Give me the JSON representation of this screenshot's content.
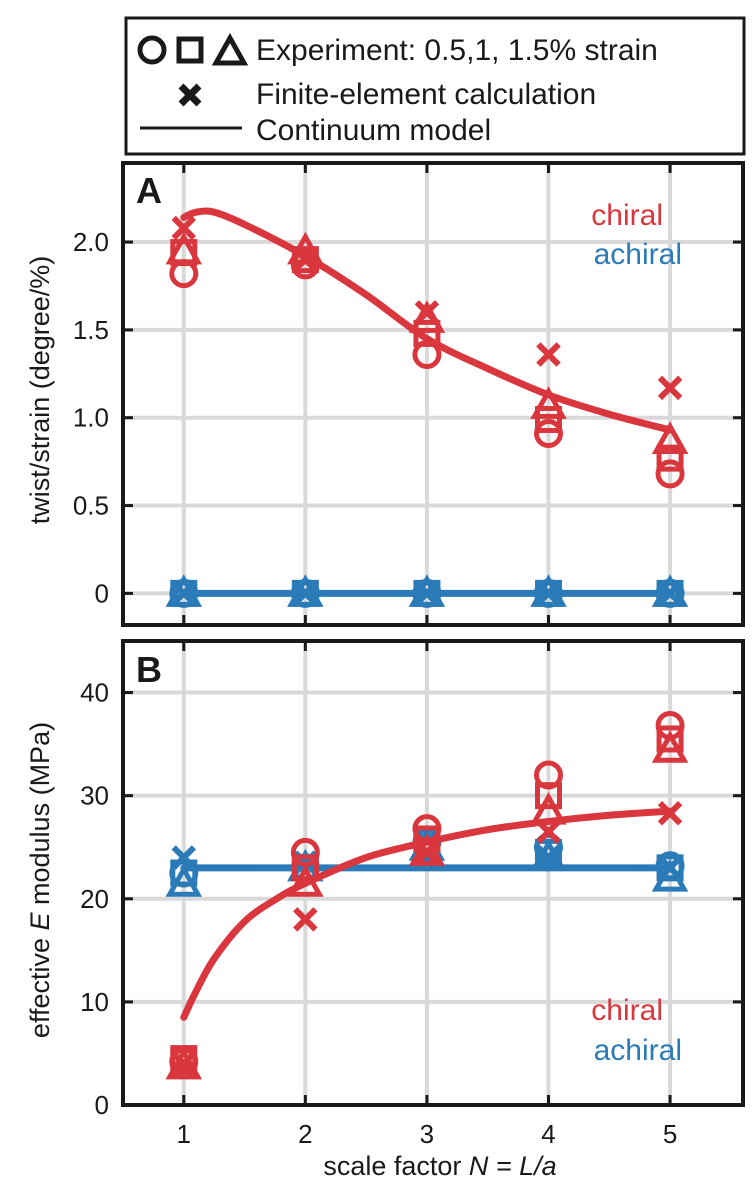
{
  "colors": {
    "chiral": "#d9363e",
    "achiral": "#2b7bb9",
    "grid": "#d9d9d9",
    "frame": "#1a1a1a"
  },
  "legend": {
    "experiment": "Experiment: 0.5,1, 1.5% strain",
    "fe": "Finite-element calculation",
    "model": "Continuum model"
  },
  "xlabel": {
    "pre": "scale factor ",
    "var": "N = L/a"
  },
  "chart_data": [
    {
      "type": "line",
      "panel": "A",
      "ylabel": "twist/strain (degree/%)",
      "xlim": [
        0.5,
        5.6
      ],
      "ylim": [
        -0.18,
        2.45
      ],
      "x_ticks": [
        1,
        2,
        3,
        4,
        5
      ],
      "y_ticks": [
        0,
        0.5,
        1.0,
        1.5,
        2.0
      ],
      "y_tick_labels": [
        "0",
        "0.5",
        "1.0",
        "1.5",
        "2.0"
      ],
      "grid": true,
      "legend_labels": {
        "chiral": "chiral",
        "achiral": "achiral"
      },
      "series": [
        {
          "group": "chiral",
          "model": {
            "x": [
              1.0,
              1.1,
              1.25,
              1.5,
              2.0,
              2.5,
              3.0,
              3.5,
              4.0,
              4.5,
              5.0
            ],
            "y": [
              2.14,
              2.17,
              2.17,
              2.1,
              1.92,
              1.7,
              1.45,
              1.28,
              1.13,
              1.02,
              0.93
            ]
          },
          "fe": {
            "x": [
              1,
              2,
              3,
              4,
              5
            ],
            "y": [
              2.08,
              1.9,
              1.6,
              1.36,
              1.17
            ]
          },
          "exp_circle": {
            "x": [
              1,
              2,
              3,
              4,
              5
            ],
            "y": [
              1.82,
              1.87,
              1.36,
              0.91,
              0.68
            ]
          },
          "exp_square": {
            "x": [
              1,
              2,
              3,
              4,
              5
            ],
            "y": [
              1.94,
              1.9,
              1.48,
              0.99,
              0.77
            ]
          },
          "exp_triangle": {
            "x": [
              1,
              2,
              3,
              4,
              5
            ],
            "y": [
              1.95,
              1.95,
              1.56,
              1.07,
              0.87
            ]
          }
        },
        {
          "group": "achiral",
          "model": {
            "x": [
              1,
              5
            ],
            "y": [
              0,
              0
            ]
          },
          "fe": {
            "x": [
              1,
              2,
              3,
              4,
              5
            ],
            "y": [
              0,
              0,
              0,
              0,
              0
            ]
          },
          "exp_circle": {
            "x": [
              1,
              2,
              3,
              4,
              5
            ],
            "y": [
              0,
              0,
              0,
              0,
              0
            ]
          },
          "exp_square": {
            "x": [
              1,
              2,
              3,
              4,
              5
            ],
            "y": [
              0,
              0,
              0,
              0,
              0
            ]
          },
          "exp_triangle": {
            "x": [
              1,
              2,
              3,
              4,
              5
            ],
            "y": [
              0,
              0,
              0,
              0,
              0
            ]
          }
        }
      ]
    },
    {
      "type": "line",
      "panel": "B",
      "ylabel_pre": "effective ",
      "ylabel_var": "E",
      "ylabel_post": " modulus (MPa)",
      "xlim": [
        0.5,
        5.6
      ],
      "ylim": [
        0,
        45
      ],
      "x_ticks": [
        1,
        2,
        3,
        4,
        5
      ],
      "x_tick_labels": [
        "1",
        "2",
        "3",
        "4",
        "5"
      ],
      "y_ticks": [
        0,
        10,
        20,
        30,
        40
      ],
      "y_tick_labels": [
        "0",
        "10",
        "20",
        "30",
        "40"
      ],
      "grid": true,
      "legend_labels": {
        "chiral": "chiral",
        "achiral": "achiral"
      },
      "series": [
        {
          "group": "achiral",
          "model": {
            "x": [
              1,
              5
            ],
            "y": [
              23,
              23
            ]
          },
          "fe": {
            "x": [
              1,
              2,
              3,
              4,
              5
            ],
            "y": [
              24,
              23.5,
              24,
              24,
              23
            ]
          },
          "exp_circle": {
            "x": [
              1,
              2,
              3,
              4,
              5
            ],
            "y": [
              22.5,
              23,
              25.5,
              25,
              23.2
            ]
          },
          "exp_square": {
            "x": [
              1,
              2,
              3,
              4,
              5
            ],
            "y": [
              22.5,
              23,
              25,
              24.5,
              23
            ]
          },
          "exp_triangle": {
            "x": [
              1,
              2,
              3,
              4,
              5
            ],
            "y": [
              21.5,
              23,
              25,
              24,
              22
            ]
          }
        },
        {
          "group": "chiral",
          "model": {
            "x": [
              1.0,
              1.1,
              1.25,
              1.5,
              1.75,
              2.0,
              2.5,
              3.0,
              3.5,
              4.0,
              4.5,
              5.0
            ],
            "y": [
              8.5,
              11.0,
              14.2,
              17.8,
              19.9,
              21.5,
              24.0,
              25.5,
              26.7,
              27.5,
              28.1,
              28.5
            ]
          },
          "fe": {
            "x": [
              1,
              2,
              3,
              4,
              5
            ],
            "y": [
              4,
              18,
              24.5,
              26.5,
              28.3
            ]
          },
          "exp_circle": {
            "x": [
              1,
              2,
              3,
              4,
              5
            ],
            "y": [
              4.2,
              24.5,
              26.8,
              32,
              36.8
            ]
          },
          "exp_square": {
            "x": [
              1,
              2,
              3,
              4,
              5
            ],
            "y": [
              4.5,
              23,
              25.8,
              30,
              35.5
            ]
          },
          "exp_triangle": {
            "x": [
              1,
              2,
              3,
              4,
              5
            ],
            "y": [
              3.8,
              21.5,
              24.5,
              28.5,
              34.5
            ]
          }
        }
      ]
    }
  ]
}
